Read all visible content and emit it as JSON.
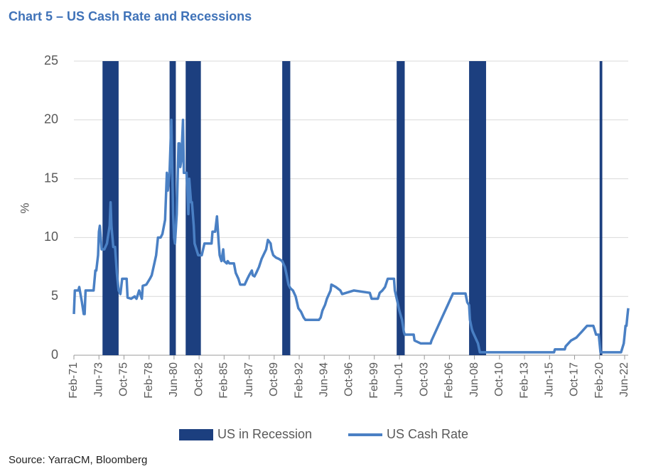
{
  "chart_data": {
    "type": "line",
    "title": "Chart 5 – US Cash Rate and Recessions",
    "y_label": "%",
    "source": "Source: YarraCM, Bloomberg",
    "xlim": [
      "1971-02",
      "2022-10"
    ],
    "ylim": [
      0,
      25
    ],
    "yticks": [
      0,
      5,
      10,
      15,
      20,
      25
    ],
    "grid": true,
    "legend": "bottom",
    "xticks": [
      {
        "value": "1971-02",
        "label": "Feb-71"
      },
      {
        "value": "1973-06",
        "label": "Jun-73"
      },
      {
        "value": "1975-10",
        "label": "Oct-75"
      },
      {
        "value": "1978-02",
        "label": "Feb-78"
      },
      {
        "value": "1980-06",
        "label": "Jun-80"
      },
      {
        "value": "1982-10",
        "label": "Oct-82"
      },
      {
        "value": "1985-02",
        "label": "Feb-85"
      },
      {
        "value": "1987-06",
        "label": "Jun-87"
      },
      {
        "value": "1989-10",
        "label": "Oct-89"
      },
      {
        "value": "1992-02",
        "label": "Feb-92"
      },
      {
        "value": "1994-06",
        "label": "Jun-94"
      },
      {
        "value": "1996-10",
        "label": "Oct-96"
      },
      {
        "value": "1999-02",
        "label": "Feb-99"
      },
      {
        "value": "2001-06",
        "label": "Jun-01"
      },
      {
        "value": "2003-10",
        "label": "Oct-03"
      },
      {
        "value": "2006-02",
        "label": "Feb-06"
      },
      {
        "value": "2008-06",
        "label": "Jun-08"
      },
      {
        "value": "2010-10",
        "label": "Oct-10"
      },
      {
        "value": "2013-02",
        "label": "Feb-13"
      },
      {
        "value": "2015-06",
        "label": "Jun-15"
      },
      {
        "value": "2017-10",
        "label": "Oct-17"
      },
      {
        "value": "2020-02",
        "label": "Feb-20"
      },
      {
        "value": "2022-06",
        "label": "Jun-22"
      }
    ],
    "recessions": {
      "name": "US in Recession",
      "color": "#1c3f7f",
      "spans": [
        {
          "start": "1973-10",
          "end": "1975-04"
        },
        {
          "start": "1980-01",
          "end": "1980-08"
        },
        {
          "start": "1981-07",
          "end": "1982-12"
        },
        {
          "start": "1990-07",
          "end": "1991-04"
        },
        {
          "start": "2001-03",
          "end": "2001-12"
        },
        {
          "start": "2007-12",
          "end": "2009-07"
        },
        {
          "start": "2020-02",
          "end": "2020-05"
        }
      ]
    },
    "series": [
      {
        "name": "US Cash Rate",
        "color": "#4a80c4",
        "x": [
          "1971-02",
          "1971-03",
          "1971-07",
          "1971-08",
          "1971-11",
          "1972-01",
          "1972-02",
          "1972-03",
          "1972-12",
          "1973-02",
          "1973-03",
          "1973-05",
          "1973-06",
          "1973-07",
          "1973-09",
          "1973-12",
          "1974-03",
          "1974-06",
          "1974-07",
          "1974-08",
          "1974-10",
          "1974-12",
          "1975-02",
          "1975-04",
          "1975-06",
          "1975-08",
          "1976-01",
          "1976-02",
          "1976-06",
          "1976-10",
          "1976-12",
          "1977-03",
          "1977-06",
          "1977-07",
          "1977-11",
          "1978-03",
          "1978-05",
          "1978-08",
          "1978-10",
          "1978-12",
          "1979-03",
          "1979-05",
          "1979-08",
          "1979-10",
          "1979-11",
          "1980-01",
          "1980-03",
          "1980-05",
          "1980-06",
          "1980-07",
          "1980-09",
          "1980-11",
          "1980-12",
          "1981-01",
          "1981-02",
          "1981-04",
          "1981-05",
          "1981-08",
          "1981-09",
          "1981-10",
          "1981-11",
          "1982-01",
          "1982-02",
          "1982-04",
          "1982-05",
          "1982-07",
          "1982-09",
          "1983-01",
          "1983-04",
          "1983-12",
          "1984-01",
          "1984-04",
          "1984-06",
          "1984-08",
          "1984-09",
          "1984-11",
          "1985-01",
          "1985-02",
          "1985-05",
          "1985-06",
          "1985-08",
          "1986-01",
          "1986-03",
          "1986-06",
          "1986-08",
          "1987-01",
          "1987-04",
          "1987-06",
          "1987-09",
          "1987-10",
          "1987-12",
          "1988-02",
          "1988-05",
          "1988-08",
          "1989-01",
          "1989-03",
          "1989-06",
          "1989-07",
          "1989-09",
          "1989-12",
          "1990-03",
          "1990-07",
          "1990-10",
          "1990-12",
          "1991-02",
          "1991-04",
          "1991-07",
          "1991-10",
          "1992-01",
          "1992-04",
          "1992-07",
          "1992-09",
          "1993-12",
          "1994-02",
          "1994-04",
          "1994-07",
          "1994-09",
          "1995-01",
          "1995-02",
          "1995-07",
          "1995-12",
          "1996-02",
          "1997-03",
          "1998-09",
          "1998-11",
          "1999-06",
          "1999-08",
          "1999-11",
          "2000-02",
          "2000-05",
          "2000-12",
          "2001-01",
          "2001-04",
          "2001-06",
          "2001-09",
          "2001-11",
          "2001-12",
          "2002-10",
          "2002-11",
          "2003-06",
          "2004-05",
          "2004-06",
          "2004-12",
          "2005-06",
          "2005-12",
          "2006-06",
          "2007-08",
          "2007-10",
          "2007-12",
          "2008-01",
          "2008-03",
          "2008-04",
          "2008-10",
          "2008-12",
          "2015-11",
          "2015-12",
          "2016-11",
          "2016-12",
          "2017-03",
          "2017-06",
          "2017-12",
          "2018-03",
          "2018-06",
          "2018-09",
          "2018-12",
          "2019-07",
          "2019-08",
          "2019-09",
          "2019-10",
          "2020-01",
          "2020-03",
          "2022-02",
          "2022-03",
          "2022-05",
          "2022-06",
          "2022-07",
          "2022-08",
          "2022-09",
          "2022-10"
        ],
        "values": [
          3.5,
          5.5,
          5.5,
          5.8,
          4.5,
          3.5,
          3.5,
          5.5,
          5.5,
          7.2,
          7.2,
          8.5,
          10.5,
          11,
          9,
          9,
          9.5,
          11,
          13,
          11,
          9.2,
          9.2,
          7,
          5.5,
          5.2,
          6.5,
          6.5,
          4.9,
          4.8,
          5,
          4.8,
          5.5,
          4.8,
          5.9,
          6,
          6.5,
          6.8,
          7.8,
          8.5,
          10,
          10,
          10.3,
          11.5,
          15.5,
          14,
          15.5,
          20,
          12,
          10,
          9.5,
          12,
          18,
          18,
          16,
          16.5,
          20,
          15.5,
          15.5,
          14,
          12,
          15,
          13,
          13,
          11,
          9.5,
          9,
          8.5,
          8.5,
          9.5,
          9.5,
          10.5,
          10.5,
          11.8,
          9.5,
          8.5,
          8,
          9,
          8,
          7.8,
          8,
          7.8,
          7.8,
          7,
          6.5,
          6,
          6,
          6.5,
          6.8,
          7.2,
          6.8,
          6.7,
          7,
          7.5,
          8.2,
          9,
          9.8,
          9.5,
          9,
          8.5,
          8.3,
          8.2,
          8,
          7.5,
          6.8,
          6,
          5.7,
          5.5,
          5,
          4,
          3.7,
          3.2,
          3,
          3,
          3.2,
          3.8,
          4.3,
          4.8,
          5.5,
          6,
          5.8,
          5.5,
          5.2,
          5.5,
          5.3,
          4.8,
          4.8,
          5.3,
          5.5,
          5.8,
          6.5,
          6.5,
          5.5,
          4.5,
          3.8,
          3,
          2,
          1.75,
          1.75,
          1.25,
          1,
          1,
          1.25,
          2.25,
          3.25,
          4.25,
          5.25,
          5.25,
          4.5,
          4.25,
          3,
          2.25,
          2,
          1,
          0.25,
          0.25,
          0.5,
          0.5,
          0.75,
          1,
          1.25,
          1.5,
          1.75,
          2,
          2.25,
          2.5,
          2.5,
          2.25,
          2,
          1.75,
          1.75,
          0.25,
          0.25,
          0.5,
          1,
          1.75,
          2.5,
          2.5,
          3.25,
          4
        ]
      }
    ]
  }
}
